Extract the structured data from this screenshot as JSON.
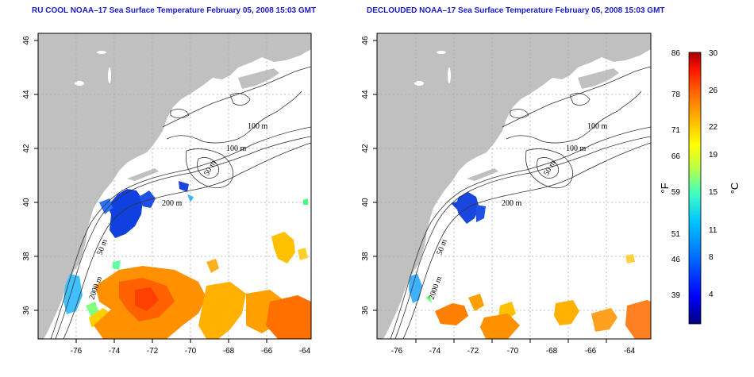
{
  "left_map": {
    "title": "RU COOL NOAA–17 Sea Surface Temperature February 05, 2008 15:03 GMT",
    "x_ticks": [
      "-76",
      "-74",
      "-72",
      "-70",
      "-68",
      "-66",
      "-64"
    ],
    "y_ticks": [
      "36",
      "38",
      "40",
      "42",
      "44",
      "46"
    ],
    "contour_labels": [
      "100 m",
      "100 m",
      "50 m",
      "200 m",
      "50 m",
      "2000 m"
    ]
  },
  "right_map": {
    "title": "DECLOUDED NOAA–17 Sea Surface Temperature February 05, 2008 15:03 GMT",
    "x_ticks": [
      "-76",
      "-74",
      "-72",
      "-70",
      "-68",
      "-66",
      "-64"
    ],
    "y_ticks": [
      "36",
      "38",
      "40",
      "42",
      "44",
      "46"
    ],
    "contour_labels": [
      "100 m",
      "100 m",
      "50 m",
      "200 m",
      "50 m",
      "2000 m"
    ]
  },
  "colorbar": {
    "fahrenheit_ticks": [
      "86",
      "78",
      "71",
      "66",
      "59",
      "51",
      "46",
      "39"
    ],
    "celsius_ticks": [
      "30",
      "26",
      "22",
      "19",
      "15",
      "11",
      "8",
      "4"
    ],
    "fahrenheit_unit": "°F",
    "celsius_unit": "°C",
    "colors": [
      "#000080",
      "#0000ff",
      "#0080ff",
      "#00c0ff",
      "#40ffc0",
      "#c0ff40",
      "#ffff00",
      "#ffc000",
      "#ff8000",
      "#ff2000",
      "#a00000"
    ]
  },
  "colors": {
    "land": "#c0c0c0",
    "ocean": "#ffffff",
    "grid": "#aaaaaa",
    "title": "#1a1acc"
  }
}
